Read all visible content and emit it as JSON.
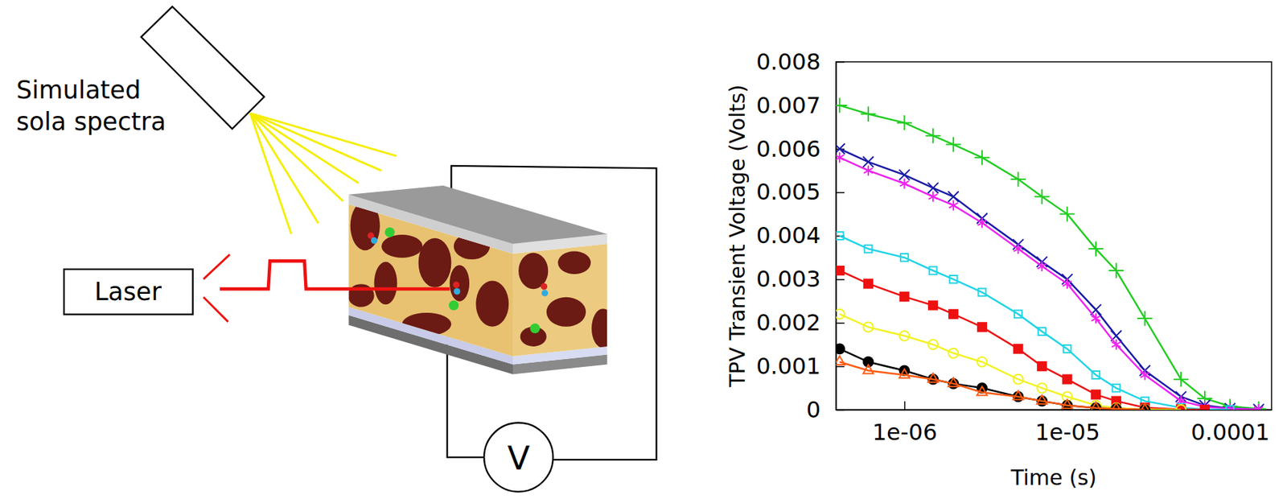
{
  "diagram": {
    "light_source": {
      "label": [
        "Simulated",
        "sola spectra"
      ]
    },
    "laser": {
      "label": "Laser"
    },
    "meter": {
      "label": "V"
    }
  },
  "chart_data": {
    "type": "scatter",
    "x_label": "Time (s)",
    "y_label": "TPV Transient Voltage (Volts)",
    "log": "x",
    "grid": false,
    "line_style": "solid",
    "xlim": [
      3.8e-07,
      0.00018
    ],
    "xticks": [
      {
        "value": 1e-06,
        "label": "1e-06"
      },
      {
        "value": 1e-05,
        "label": "1e-05"
      },
      0.0001
    ],
    "ylim": [
      0,
      0.008
    ],
    "yticks": [
      0,
      0.001,
      0.002,
      0.003,
      0.004,
      0.005,
      0.006,
      0.007,
      0.008
    ],
    "x": [
      4e-07,
      6e-07,
      1e-06,
      1.5e-06,
      2e-06,
      3e-06,
      5e-06,
      7e-06,
      1e-05,
      1.5e-05,
      2e-05,
      3e-05,
      5e-05,
      7e-05,
      0.0001,
      0.00015
    ],
    "series": [
      {
        "color": "#22cc22",
        "marker": "plus",
        "values": [
          0.007,
          0.0068,
          0.0066,
          0.0063,
          0.0061,
          0.0058,
          0.0053,
          0.0049,
          0.0045,
          0.0037,
          0.0032,
          0.0021,
          0.0007,
          0.00026,
          8e-05,
          2e-05
        ]
      },
      {
        "color": "#1a1aa6",
        "marker": "cross",
        "values": [
          0.006,
          0.0057,
          0.0054,
          0.0051,
          0.0049,
          0.0044,
          0.0038,
          0.0034,
          0.003,
          0.0023,
          0.0017,
          0.0009,
          0.0003,
          0.0001,
          3e-05,
          1e-05
        ]
      },
      {
        "color": "#ee22ee",
        "marker": "star",
        "values": [
          0.0058,
          0.0055,
          0.0052,
          0.0049,
          0.0047,
          0.0043,
          0.0037,
          0.0033,
          0.0029,
          0.0021,
          0.0015,
          0.0008,
          0.0002,
          7e-05,
          2e-05,
          1e-05
        ]
      },
      {
        "color": "#22d4e6",
        "marker": "square-open",
        "values": [
          0.004,
          0.0037,
          0.0035,
          0.0032,
          0.003,
          0.0027,
          0.0022,
          0.0018,
          0.0014,
          0.0008,
          0.0005,
          0.0002,
          5e-05,
          1e-05,
          0,
          null
        ]
      },
      {
        "color": "#ee1111",
        "marker": "square",
        "values": [
          0.0032,
          0.0029,
          0.0026,
          0.0024,
          0.0022,
          0.0019,
          0.0014,
          0.001,
          0.0007,
          0.00035,
          0.0002,
          5e-05,
          1e-05,
          0,
          null,
          null
        ]
      },
      {
        "color": "#f2f222",
        "marker": "circle-open",
        "values": [
          0.0022,
          0.0019,
          0.0017,
          0.0015,
          0.0013,
          0.0011,
          0.0007,
          0.0005,
          0.0003,
          0.0001,
          4e-05,
          1e-05,
          0,
          null,
          null,
          null
        ]
      },
      {
        "color": "#000000",
        "marker": "circle",
        "values": [
          0.0014,
          0.0011,
          0.0009,
          0.0007,
          0.0006,
          0.0005,
          0.0003,
          0.0002,
          0.0001,
          4e-05,
          2e-05,
          0,
          null,
          null,
          null,
          null
        ]
      },
      {
        "color": "#ff5a10",
        "marker": "triangle-open",
        "values": [
          0.0011,
          0.0009,
          0.0008,
          0.0007,
          0.0006,
          0.0004,
          0.0003,
          0.0002,
          0.0001,
          4e-05,
          2e-05,
          0,
          null,
          null,
          null,
          null
        ]
      }
    ]
  }
}
